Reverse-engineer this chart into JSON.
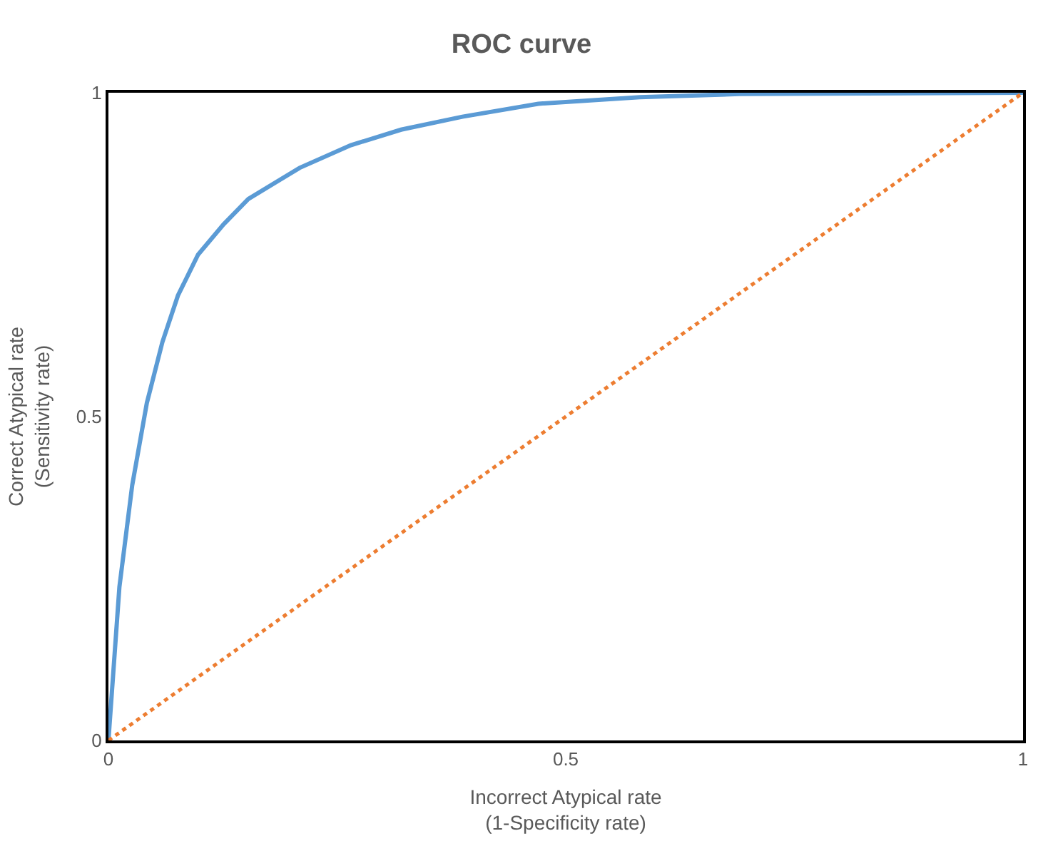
{
  "chart_data": {
    "type": "line",
    "title": "ROC curve",
    "xlabel": "Incorrect Atypical rate\n(1-Specificity rate)",
    "ylabel": "Correct Atypical rate\n(Sensitivity rate)",
    "xlim": [
      0,
      1
    ],
    "ylim": [
      0,
      1
    ],
    "xticks": [
      0,
      0.5,
      1
    ],
    "yticks": [
      0,
      0.5,
      1
    ],
    "marker": "none",
    "series": [
      {
        "color": "#5b9bd5",
        "line_style": "solid",
        "x": [
          0,
          0.012,
          0.026,
          0.042,
          0.059,
          0.076,
          0.098,
          0.126,
          0.153,
          0.209,
          0.265,
          0.32,
          0.387,
          0.47,
          0.581,
          0.69,
          1
        ],
        "values": [
          0,
          0.237,
          0.394,
          0.521,
          0.615,
          0.687,
          0.75,
          0.797,
          0.836,
          0.884,
          0.919,
          0.943,
          0.963,
          0.983,
          0.993,
          0.998,
          1
        ]
      },
      {
        "color": "#ed7d31",
        "line_style": "dotted",
        "x": [
          0,
          1
        ],
        "values": [
          0,
          1
        ]
      }
    ]
  }
}
